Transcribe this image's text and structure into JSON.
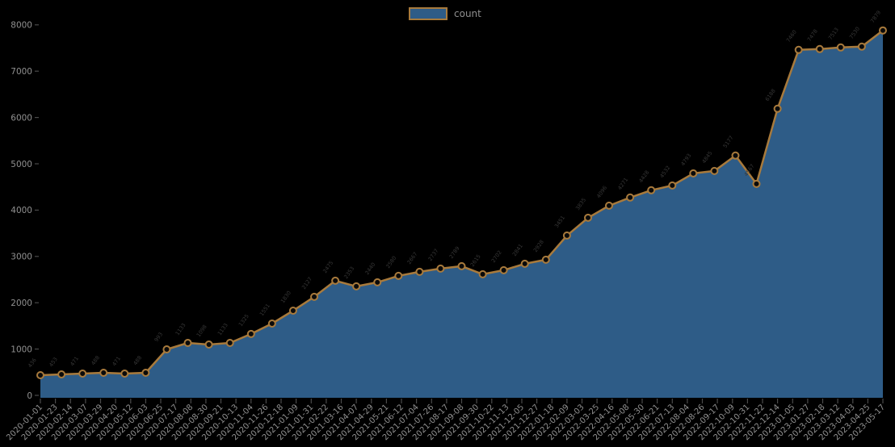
{
  "chart_data": {
    "type": "area",
    "title": "",
    "xlabel": "",
    "ylabel": "",
    "legend": {
      "label": "count",
      "position": "top-center"
    },
    "ylim": [
      0,
      8000
    ],
    "y_ticks": [
      0,
      1000,
      2000,
      3000,
      4000,
      5000,
      6000,
      7000,
      8000
    ],
    "grid": false,
    "marker": "open-circle",
    "x": [
      "2020-01",
      "2020-02",
      "2020-03",
      "2020-04",
      "2020-05",
      "2020-06",
      "2020-07",
      "2020-08",
      "2020-09",
      "2020-10",
      "2020-11",
      "2020-12",
      "2021-01",
      "2021-02",
      "2021-03",
      "2021-04",
      "2021-05",
      "2021-06",
      "2021-07",
      "2021-08",
      "2021-09",
      "2021-10",
      "2021-11",
      "2021-12",
      "2022-01",
      "2022-02",
      "2022-03",
      "2022-04",
      "2022-05",
      "2022-06",
      "2022-07",
      "2022-08",
      "2022-09",
      "2022-10",
      "2022-11",
      "2022-12",
      "2023-01",
      "2023-02",
      "2023-03",
      "2023-04",
      "2023-05"
    ],
    "values": [
      436,
      453,
      471,
      488,
      471,
      488,
      993,
      1133,
      1098,
      1133,
      1325,
      1551,
      1830,
      2127,
      2475,
      2353,
      2440,
      2580,
      2667,
      2737,
      2789,
      2615,
      2702,
      2841,
      2928,
      3451,
      3835,
      4096,
      4271,
      4428,
      4532,
      4793,
      4845,
      5177,
      4567,
      6188,
      7460,
      7478,
      7513,
      7530,
      7879
    ],
    "x_tick_labels": [
      "2020-01-01",
      "2020-01-23",
      "2020-02-14",
      "2020-03-07",
      "2020-03-29",
      "2020-04-20",
      "2020-05-12",
      "2020-06-03",
      "2020-06-25",
      "2020-07-17",
      "2020-08-08",
      "2020-08-30",
      "2020-09-21",
      "2020-10-13",
      "2020-11-04",
      "2020-11-26",
      "2020-12-18",
      "2021-01-09",
      "2021-01-31",
      "2021-02-22",
      "2021-03-16",
      "2021-04-07",
      "2021-04-29",
      "2021-05-21",
      "2021-06-12",
      "2021-07-04",
      "2021-07-26",
      "2021-08-17",
      "2021-09-08",
      "2021-09-30",
      "2021-10-22",
      "2021-11-13",
      "2021-12-05",
      "2021-12-27",
      "2022-01-18",
      "2022-02-09",
      "2022-03-03",
      "2022-03-25",
      "2022-04-16",
      "2022-05-08",
      "2022-05-30",
      "2022-06-21",
      "2022-07-13",
      "2022-08-04",
      "2022-08-26",
      "2022-09-17",
      "2022-10-09",
      "2022-10-31",
      "2022-11-22",
      "2022-12-14",
      "2023-01-05",
      "2023-01-27",
      "2023-02-18",
      "2023-03-12",
      "2023-04-03",
      "2023-04-25",
      "2023-05-17"
    ],
    "colors": {
      "background": "#000000",
      "area_fill": "#2e5c87",
      "line": "#a87a3c",
      "marker_face": "#0a0a0a",
      "tick_label": "#909090",
      "legend_text": "#8f8f8f",
      "annotation": "#383838",
      "tick_mark": "#4a4a4a"
    },
    "legend_position_note": "top-center"
  }
}
